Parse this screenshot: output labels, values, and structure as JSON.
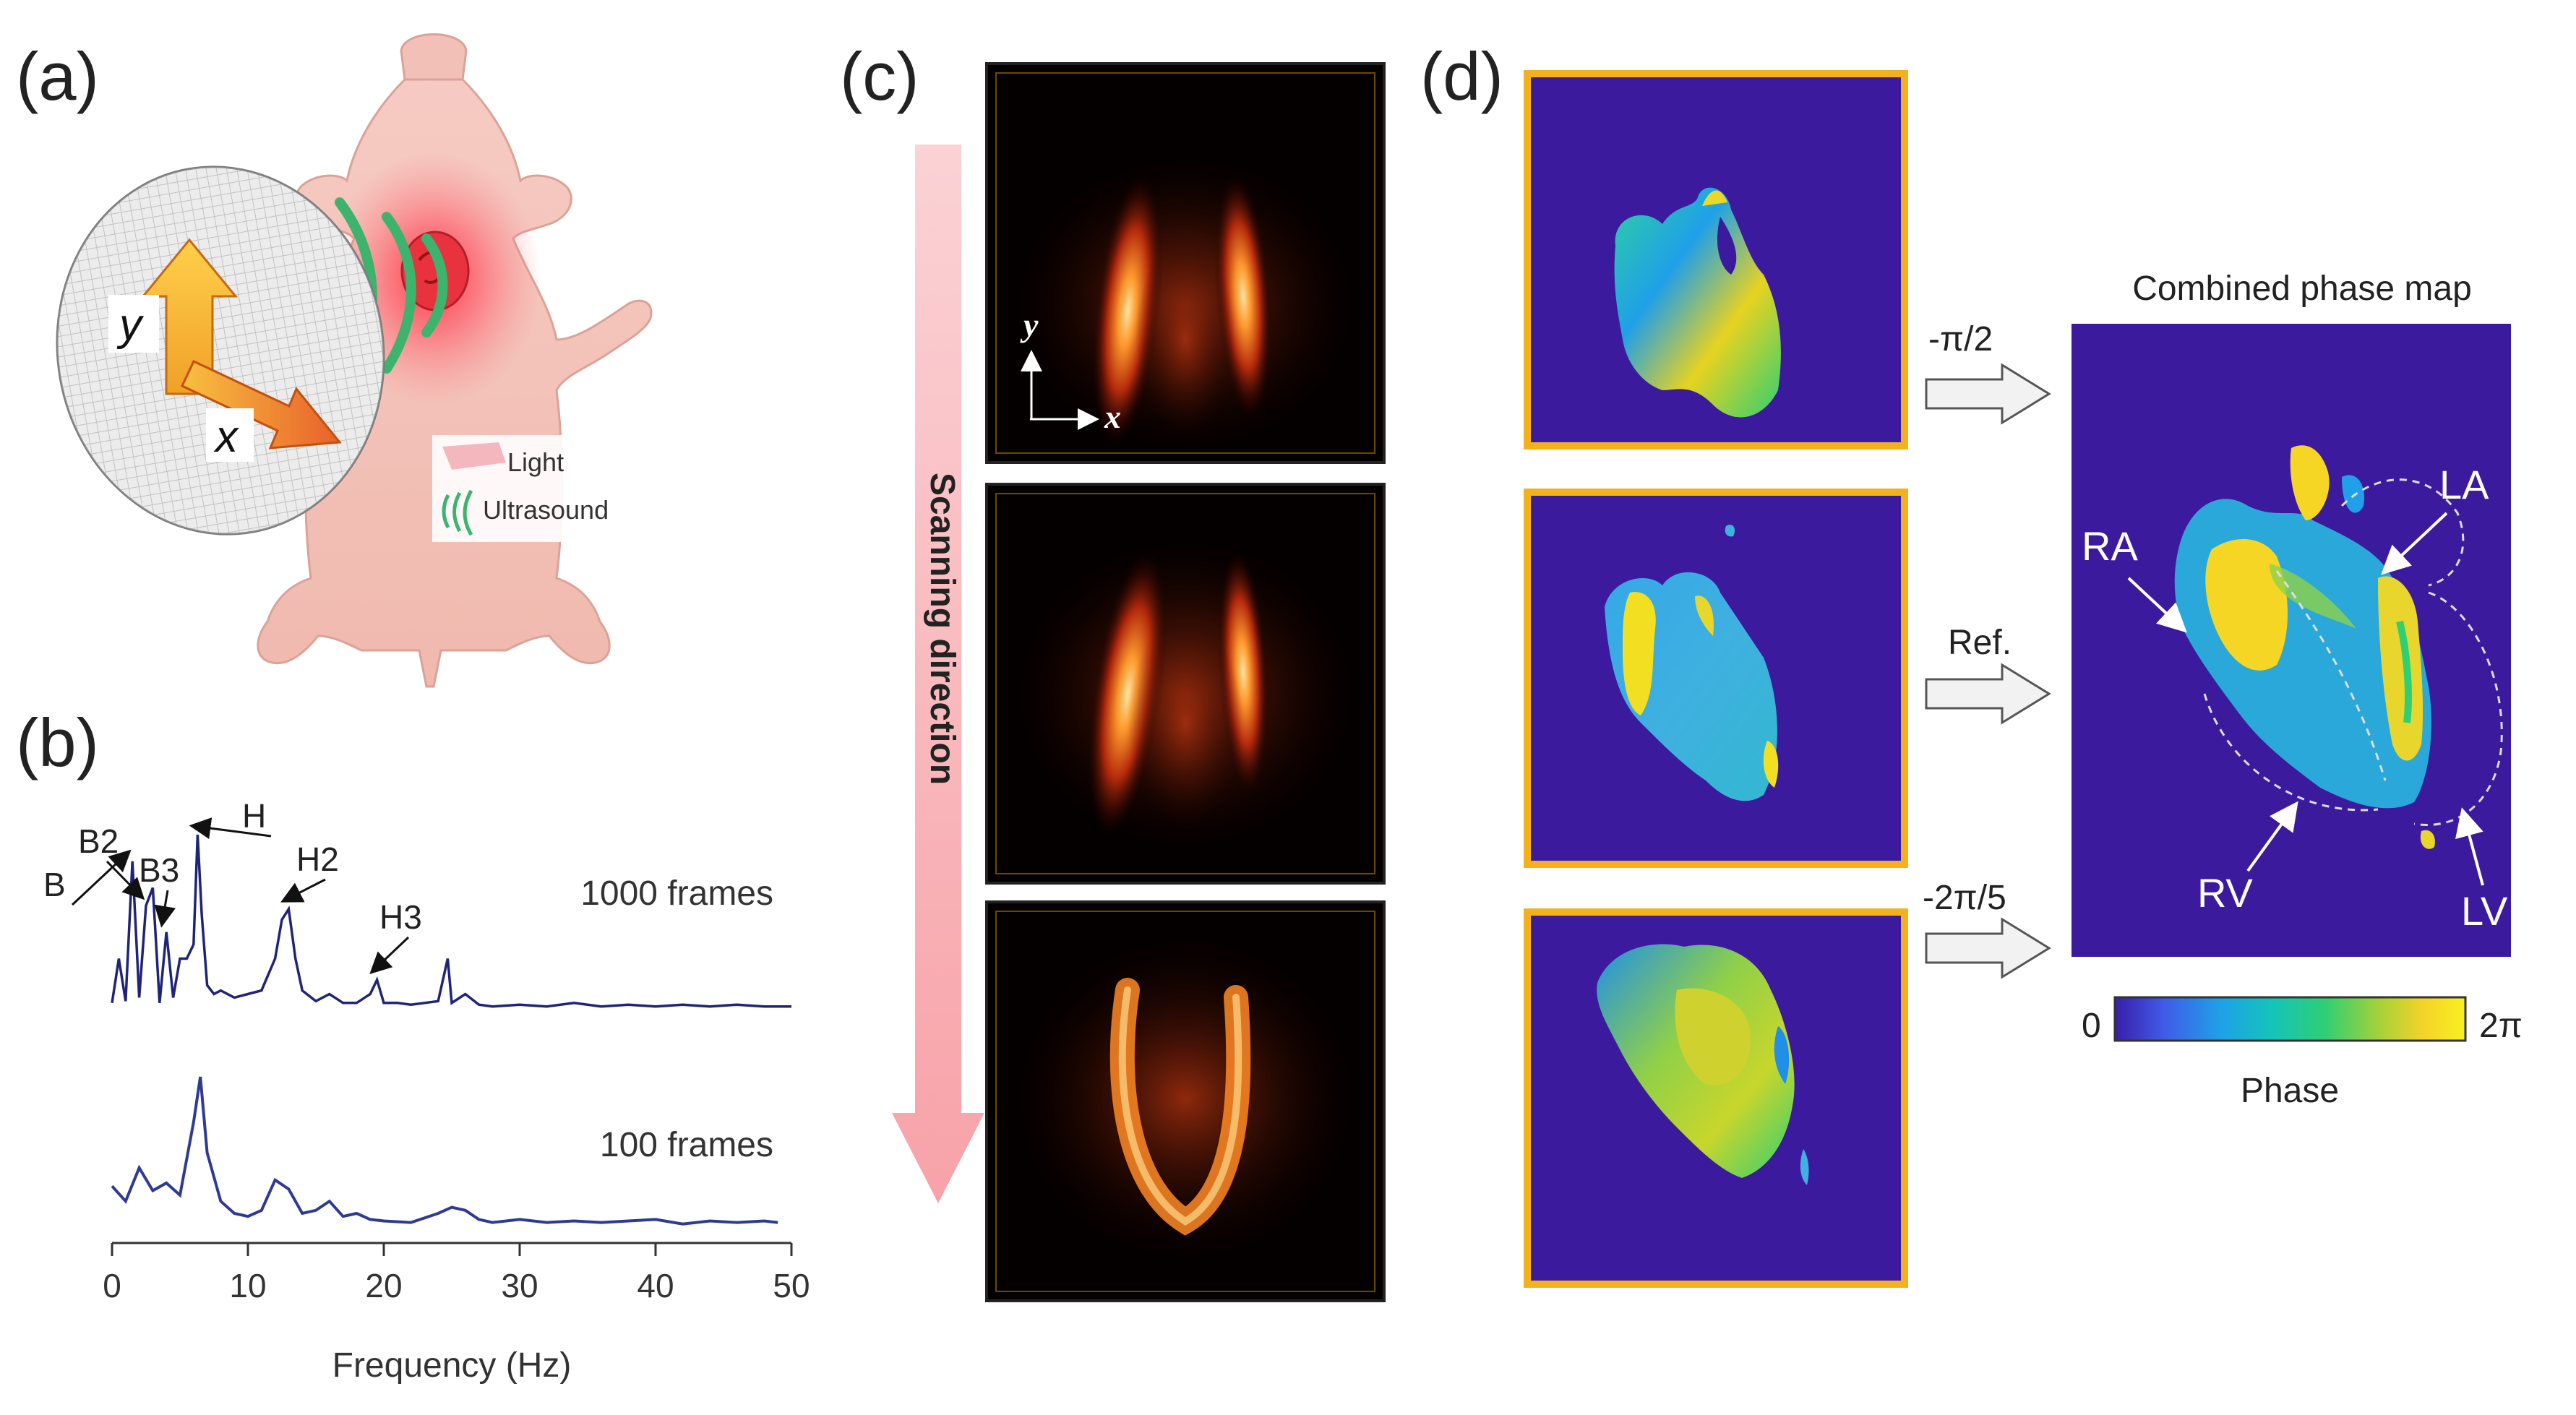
{
  "panels": {
    "a": {
      "label": "(a)",
      "axis_y": "y",
      "axis_x": "x",
      "legend": {
        "light": "Light",
        "ultrasound": "Ultrasound"
      },
      "colors": {
        "light": "#f4b7bd",
        "ultrasound": "#3cb46e"
      }
    },
    "b": {
      "label": "(b)"
    },
    "c": {
      "label": "(c)",
      "scan_label": "Scanning direction",
      "axis_y": "y",
      "axis_x": "x"
    },
    "d": {
      "label": "(d)",
      "combined_title": "Combined phase map",
      "shifts": [
        "-π/2",
        "Ref.",
        "-2π/5"
      ],
      "chambers": [
        "RA",
        "LA",
        "RV",
        "LV"
      ],
      "colorbar_min": "0",
      "colorbar_max": "2π",
      "colorbar_label": "Phase",
      "colorbar_colors": [
        "#3a1eaa",
        "#3f5be8",
        "#1fa0e8",
        "#15c4b8",
        "#2fcf73",
        "#a3d13a",
        "#f4d32a",
        "#f9f020"
      ],
      "frame_color": "#f3b21d",
      "background_color": "#3b1a9e"
    }
  },
  "chart_data": {
    "type": "line",
    "xlabel": "Frequency (Hz)",
    "xlim": [
      0,
      50
    ],
    "xticks": [
      0,
      10,
      20,
      30,
      40,
      50
    ],
    "series": [
      {
        "name": "1000 frames",
        "x": [
          0,
          0.5,
          1.0,
          1.5,
          2.0,
          2.5,
          3.0,
          3.5,
          4.0,
          4.5,
          5.0,
          5.5,
          6.0,
          6.3,
          6.6,
          7.0,
          7.5,
          8.0,
          9.0,
          10.0,
          11.0,
          12.0,
          12.5,
          13.0,
          13.5,
          14.0,
          15.0,
          16.0,
          17.0,
          18.0,
          19.0,
          19.5,
          20.0,
          21.0,
          22.0,
          23.0,
          24.0,
          24.7,
          25.0,
          26.0,
          27.0,
          28.0,
          30.0,
          32.0,
          34.0,
          36.0,
          38.0,
          40.0,
          42.0,
          44.0,
          46.0,
          48.0,
          50.0
        ],
        "y": [
          0.05,
          0.3,
          0.06,
          0.85,
          0.08,
          0.6,
          0.7,
          0.05,
          0.45,
          0.08,
          0.3,
          0.3,
          0.38,
          1.0,
          0.55,
          0.15,
          0.1,
          0.12,
          0.08,
          0.1,
          0.12,
          0.3,
          0.52,
          0.58,
          0.3,
          0.12,
          0.06,
          0.1,
          0.05,
          0.05,
          0.1,
          0.18,
          0.05,
          0.05,
          0.04,
          0.05,
          0.06,
          0.3,
          0.05,
          0.1,
          0.04,
          0.03,
          0.04,
          0.03,
          0.05,
          0.03,
          0.04,
          0.03,
          0.04,
          0.03,
          0.04,
          0.03,
          0.03
        ],
        "annotations": [
          "B",
          "B2",
          "B3",
          "H",
          "H2",
          "H3"
        ]
      },
      {
        "name": "100 frames",
        "x": [
          0,
          1.0,
          2.0,
          3.0,
          4.0,
          5.0,
          6.0,
          6.5,
          7.0,
          8.0,
          9.0,
          10.0,
          11.0,
          12.0,
          13.0,
          14.0,
          15.0,
          16.0,
          17.0,
          18.0,
          19.0,
          20.0,
          22.0,
          24.0,
          25.0,
          26.0,
          27.0,
          28.0,
          30.0,
          32.0,
          34.0,
          36.0,
          38.0,
          40.0,
          42.0,
          44.0,
          46.0,
          48.0,
          49.0
        ],
        "y": [
          0.28,
          0.18,
          0.4,
          0.25,
          0.3,
          0.22,
          0.7,
          1.0,
          0.5,
          0.18,
          0.1,
          0.08,
          0.12,
          0.32,
          0.26,
          0.1,
          0.12,
          0.18,
          0.08,
          0.1,
          0.06,
          0.05,
          0.04,
          0.1,
          0.14,
          0.12,
          0.06,
          0.04,
          0.06,
          0.04,
          0.05,
          0.04,
          0.05,
          0.06,
          0.03,
          0.05,
          0.04,
          0.05,
          0.04
        ]
      }
    ]
  }
}
